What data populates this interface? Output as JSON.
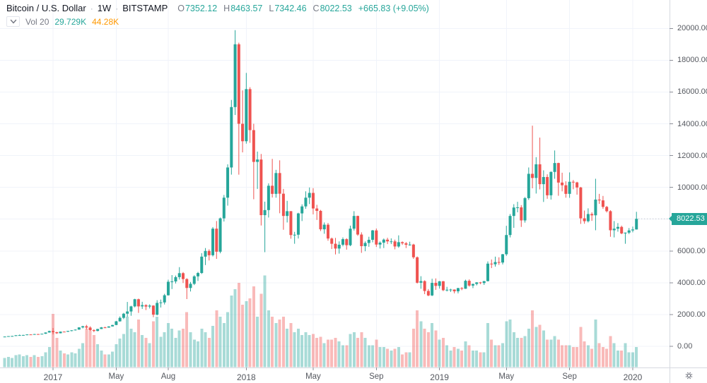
{
  "header": {
    "title": "Bitcoin / U.S. Dollar",
    "separator": "·",
    "interval": "1W",
    "exchange": "BITSTAMP",
    "ohlc": {
      "open_label": "O",
      "open": "7352.12",
      "high_label": "H",
      "high": "8463.57",
      "low_label": "L",
      "low": "7342.46",
      "close_label": "C",
      "close": "8022.53",
      "change": "+665.83 (+9.05%)"
    }
  },
  "volume_indicator": {
    "label": "Vol 20",
    "value": "29.729K",
    "ma": "44.28K"
  },
  "price_scale": {
    "ticks": [
      {
        "v": 20000,
        "label": "20000.00"
      },
      {
        "v": 18000,
        "label": "18000.00"
      },
      {
        "v": 16000,
        "label": "16000.00"
      },
      {
        "v": 14000,
        "label": "14000.00"
      },
      {
        "v": 12000,
        "label": "12000.00"
      },
      {
        "v": 10000,
        "label": "10000.00"
      },
      {
        "v": 8000,
        "label": "8000.00"
      },
      {
        "v": 6000,
        "label": "6000.00"
      },
      {
        "v": 4000,
        "label": "4000.00"
      },
      {
        "v": 2000,
        "label": "2000.00"
      },
      {
        "v": 0,
        "label": "0.00"
      }
    ],
    "last_price": {
      "value": 8022.53,
      "label": "8022.53"
    }
  },
  "time_scale": {
    "labels": [
      {
        "label": "2017",
        "week": 13
      },
      {
        "label": "May",
        "week": 30
      },
      {
        "label": "Aug",
        "week": 44
      },
      {
        "label": "2018",
        "week": 65
      },
      {
        "label": "May",
        "week": 83
      },
      {
        "label": "Sep",
        "week": 100
      },
      {
        "label": "2019",
        "week": 117
      },
      {
        "label": "May",
        "week": 135
      },
      {
        "label": "Sep",
        "week": 152
      },
      {
        "label": "2020",
        "week": 169
      }
    ]
  },
  "colors": {
    "up": "#26a69a",
    "down": "#ef5350",
    "vol_up": "rgba(38,166,154,0.40)",
    "vol_down": "rgba(239,83,80,0.40)",
    "grid": "#f0f3fa",
    "axis_line": "#d6d9e0",
    "axis_text": "#55585f",
    "text_primary": "#131722",
    "text_muted": "#787b86",
    "ma_orange": "#ff9800",
    "tag_bg": "#26a69a",
    "tag_text": "#ffffff",
    "background": "#ffffff",
    "price_line_dots": "#9aa0a6",
    "icon_gray": "#6a6d78"
  },
  "chart_data": {
    "type": "candlestick",
    "title": "Bitcoin / U.S. Dollar 1W BITSTAMP",
    "x_unit": "week",
    "legend_position": "top-left",
    "grid": true,
    "y_axis": {
      "min": 0,
      "max": 20000,
      "tick_step": 2000
    },
    "volume_pane": {
      "overlay": true,
      "max_bar_height_fraction": 0.25
    },
    "columns": [
      "open",
      "high",
      "low",
      "close",
      "relative_volume"
    ],
    "candles": [
      [
        608,
        618,
        596,
        613,
        0.1
      ],
      [
        613,
        645,
        605,
        640,
        0.11
      ],
      [
        640,
        660,
        630,
        650,
        0.1
      ],
      [
        650,
        700,
        645,
        698,
        0.13
      ],
      [
        698,
        740,
        680,
        705,
        0.14
      ],
      [
        705,
        722,
        670,
        715,
        0.12
      ],
      [
        715,
        755,
        700,
        748,
        0.13
      ],
      [
        748,
        756,
        727,
        735,
        0.11
      ],
      [
        735,
        780,
        725,
        770,
        0.13
      ],
      [
        770,
        781,
        750,
        768,
        0.11
      ],
      [
        768,
        795,
        760,
        790,
        0.12
      ],
      [
        790,
        875,
        785,
        870,
        0.16
      ],
      [
        870,
        985,
        860,
        962,
        0.22
      ],
      [
        962,
        1150,
        750,
        890,
        0.58
      ],
      [
        890,
        912,
        780,
        822,
        0.32
      ],
      [
        822,
        930,
        815,
        925,
        0.18
      ],
      [
        925,
        932,
        888,
        920,
        0.15
      ],
      [
        920,
        975,
        905,
        970,
        0.14
      ],
      [
        970,
        1015,
        945,
        1007,
        0.16
      ],
      [
        1007,
        1062,
        995,
        1052,
        0.15
      ],
      [
        1052,
        1200,
        1042,
        1190,
        0.2
      ],
      [
        1190,
        1292,
        1130,
        1262,
        0.26
      ],
      [
        1262,
        1352,
        1060,
        1180,
        0.42
      ],
      [
        1180,
        1260,
        972,
        1022,
        0.4
      ],
      [
        1022,
        1072,
        892,
        968,
        0.35
      ],
      [
        968,
        1100,
        942,
        1090,
        0.25
      ],
      [
        1090,
        1212,
        1085,
        1192,
        0.18
      ],
      [
        1192,
        1232,
        1140,
        1177,
        0.14
      ],
      [
        1177,
        1262,
        1172,
        1252,
        0.14
      ],
      [
        1252,
        1352,
        1247,
        1342,
        0.17
      ],
      [
        1342,
        1602,
        1332,
        1572,
        0.25
      ],
      [
        1572,
        1882,
        1552,
        1792,
        0.31
      ],
      [
        1792,
        2102,
        1712,
        2052,
        0.36
      ],
      [
        2052,
        2792,
        1852,
        2192,
        0.55
      ],
      [
        2192,
        2552,
        1922,
        2512,
        0.42
      ],
      [
        2512,
        2992,
        2452,
        2962,
        0.38
      ],
      [
        2962,
        3002,
        2102,
        2512,
        0.52
      ],
      [
        2512,
        2802,
        2352,
        2592,
        0.35
      ],
      [
        2592,
        2642,
        2282,
        2502,
        0.32
      ],
      [
        2502,
        2642,
        2382,
        2562,
        0.26
      ],
      [
        2562,
        2582,
        1832,
        1992,
        0.5
      ],
      [
        1992,
        2902,
        1942,
        2732,
        0.55
      ],
      [
        2732,
        2942,
        2442,
        2762,
        0.33
      ],
      [
        2762,
        3302,
        2632,
        3212,
        0.38
      ],
      [
        3212,
        4192,
        3192,
        4062,
        0.48
      ],
      [
        4062,
        4482,
        3602,
        4082,
        0.42
      ],
      [
        4082,
        4452,
        3952,
        4352,
        0.32
      ],
      [
        4352,
        4982,
        4202,
        4602,
        0.4
      ],
      [
        4602,
        4672,
        3982,
        4232,
        0.42
      ],
      [
        4232,
        4282,
        2972,
        3672,
        0.6
      ],
      [
        3672,
        4052,
        3452,
        3932,
        0.38
      ],
      [
        3932,
        4472,
        3852,
        4402,
        0.3
      ],
      [
        4402,
        4682,
        4112,
        4612,
        0.28
      ],
      [
        4612,
        5862,
        4552,
        5642,
        0.42
      ],
      [
        5642,
        6182,
        5112,
        6002,
        0.38
      ],
      [
        6002,
        6102,
        5402,
        5732,
        0.32
      ],
      [
        5732,
        7502,
        5652,
        7402,
        0.45
      ],
      [
        7402,
        7882,
        5502,
        5952,
        0.62
      ],
      [
        5952,
        8102,
        5852,
        8052,
        0.55
      ],
      [
        8052,
        9522,
        7852,
        9352,
        0.48
      ],
      [
        9352,
        11452,
        8852,
        11252,
        0.6
      ],
      [
        11252,
        15502,
        10802,
        15052,
        0.78
      ],
      [
        15052,
        19891,
        14552,
        19002,
        0.85
      ],
      [
        19002,
        19102,
        10802,
        14002,
        0.92
      ],
      [
        14002,
        16102,
        12202,
        12902,
        0.68
      ],
      [
        12902,
        17202,
        12752,
        16182,
        0.72
      ],
      [
        16182,
        16302,
        12802,
        13602,
        0.75
      ],
      [
        13602,
        14002,
        9252,
        11602,
        0.88
      ],
      [
        11602,
        12252,
        9902,
        11752,
        0.55
      ],
      [
        11752,
        12102,
        7602,
        8252,
        0.8
      ],
      [
        8252,
        9102,
        5922,
        8572,
        1.0
      ],
      [
        8572,
        10252,
        8102,
        10102,
        0.62
      ],
      [
        10102,
        11792,
        9362,
        9592,
        0.55
      ],
      [
        9592,
        11102,
        9352,
        10902,
        0.48
      ],
      [
        10902,
        11702,
        8372,
        9602,
        0.52
      ],
      [
        9602,
        9902,
        7332,
        8202,
        0.55
      ],
      [
        8202,
        9152,
        7792,
        8502,
        0.42
      ],
      [
        8502,
        8512,
        6772,
        7002,
        0.48
      ],
      [
        7002,
        7202,
        6452,
        7022,
        0.38
      ],
      [
        7022,
        8402,
        6782,
        8362,
        0.42
      ],
      [
        8362,
        8932,
        7882,
        8802,
        0.35
      ],
      [
        8802,
        9752,
        8652,
        9352,
        0.38
      ],
      [
        9352,
        9992,
        8952,
        9652,
        0.35
      ],
      [
        9652,
        9952,
        8302,
        8672,
        0.36
      ],
      [
        8672,
        8902,
        7952,
        8522,
        0.32
      ],
      [
        8522,
        8582,
        7252,
        7362,
        0.33
      ],
      [
        7362,
        7792,
        7082,
        7652,
        0.26
      ],
      [
        7652,
        7762,
        6642,
        6782,
        0.3
      ],
      [
        6782,
        6842,
        6122,
        6452,
        0.3
      ],
      [
        6452,
        6822,
        5782,
        6152,
        0.32
      ],
      [
        6152,
        6602,
        5832,
        6392,
        0.28
      ],
      [
        6392,
        6852,
        6292,
        6742,
        0.24
      ],
      [
        6742,
        6802,
        6082,
        6362,
        0.24
      ],
      [
        6362,
        7592,
        6302,
        7402,
        0.36
      ],
      [
        7402,
        8502,
        7282,
        8202,
        0.38
      ],
      [
        8202,
        8222,
        6952,
        7032,
        0.32
      ],
      [
        7032,
        7172,
        5882,
        6302,
        0.38
      ],
      [
        6302,
        6602,
        5982,
        6502,
        0.32
      ],
      [
        6502,
        6892,
        6262,
        6702,
        0.24
      ],
      [
        6702,
        7322,
        6542,
        7292,
        0.24
      ],
      [
        7292,
        7412,
        6252,
        6402,
        0.3
      ],
      [
        6402,
        6602,
        6152,
        6522,
        0.22
      ],
      [
        6522,
        6782,
        6182,
        6712,
        0.22
      ],
      [
        6712,
        6832,
        6432,
        6602,
        0.2
      ],
      [
        6602,
        6792,
        6432,
        6602,
        0.18
      ],
      [
        6602,
        6712,
        6102,
        6282,
        0.2
      ],
      [
        6282,
        6982,
        6202,
        6552,
        0.22
      ],
      [
        6552,
        6602,
        6382,
        6482,
        0.14
      ],
      [
        6482,
        6562,
        6182,
        6392,
        0.16
      ],
      [
        6392,
        6582,
        6332,
        6402,
        0.16
      ],
      [
        6402,
        6452,
        5502,
        5602,
        0.42
      ],
      [
        5602,
        5652,
        3952,
        4002,
        0.62
      ],
      [
        4002,
        4412,
        3622,
        4102,
        0.5
      ],
      [
        4102,
        4152,
        3282,
        3482,
        0.42
      ],
      [
        3482,
        3602,
        3152,
        3202,
        0.38
      ],
      [
        3202,
        4252,
        3162,
        3992,
        0.48
      ],
      [
        3992,
        4272,
        3552,
        3802,
        0.4
      ],
      [
        3802,
        4112,
        3632,
        4092,
        0.3
      ],
      [
        4092,
        4112,
        3472,
        3532,
        0.32
      ],
      [
        3532,
        3742,
        3452,
        3562,
        0.24
      ],
      [
        3562,
        3622,
        3422,
        3572,
        0.18
      ],
      [
        3572,
        3582,
        3332,
        3462,
        0.22
      ],
      [
        3462,
        3682,
        3332,
        3662,
        0.2
      ],
      [
        3662,
        3722,
        3532,
        3622,
        0.18
      ],
      [
        3622,
        4192,
        3612,
        4122,
        0.28
      ],
      [
        4122,
        4212,
        3752,
        3822,
        0.24
      ],
      [
        3822,
        3942,
        3662,
        3922,
        0.18
      ],
      [
        3922,
        4042,
        3832,
        4022,
        0.18
      ],
      [
        4022,
        4052,
        3912,
        3982,
        0.16
      ],
      [
        3982,
        4112,
        3862,
        4102,
        0.16
      ],
      [
        4102,
        5342,
        4082,
        5202,
        0.48
      ],
      [
        5202,
        5462,
        4922,
        5162,
        0.3
      ],
      [
        5162,
        5642,
        5012,
        5302,
        0.24
      ],
      [
        5302,
        5602,
        5122,
        5272,
        0.24
      ],
      [
        5272,
        5812,
        5152,
        5792,
        0.26
      ],
      [
        5792,
        7582,
        5692,
        7002,
        0.5
      ],
      [
        7002,
        8322,
        6852,
        8202,
        0.52
      ],
      [
        8202,
        8942,
        7452,
        8732,
        0.38
      ],
      [
        8732,
        9092,
        8432,
        8742,
        0.32
      ],
      [
        8742,
        8882,
        7512,
        7922,
        0.32
      ],
      [
        7922,
        9392,
        7782,
        9322,
        0.34
      ],
      [
        9322,
        11252,
        9212,
        10852,
        0.42
      ],
      [
        10852,
        13882,
        9942,
        10592,
        0.62
      ],
      [
        10592,
        11902,
        9612,
        11452,
        0.44
      ],
      [
        11452,
        13132,
        9872,
        10202,
        0.46
      ],
      [
        10202,
        11072,
        9082,
        10652,
        0.4
      ],
      [
        10652,
        10822,
        9282,
        9502,
        0.3
      ],
      [
        9502,
        11002,
        9232,
        10972,
        0.3
      ],
      [
        10972,
        12322,
        10542,
        11532,
        0.34
      ],
      [
        11532,
        11552,
        9472,
        10302,
        0.3
      ],
      [
        10302,
        10922,
        9752,
        10132,
        0.24
      ],
      [
        10132,
        10382,
        9352,
        9592,
        0.24
      ],
      [
        9592,
        10942,
        9342,
        10352,
        0.24
      ],
      [
        10352,
        10462,
        9882,
        10312,
        0.22
      ],
      [
        10312,
        10352,
        9542,
        9992,
        0.22
      ],
      [
        9992,
        10032,
        7702,
        8052,
        0.44
      ],
      [
        8052,
        8542,
        7712,
        7872,
        0.28
      ],
      [
        7872,
        8682,
        7792,
        8322,
        0.24
      ],
      [
        8322,
        8432,
        7892,
        8242,
        0.2
      ],
      [
        8242,
        10542,
        7302,
        9232,
        0.52
      ],
      [
        9232,
        9592,
        8962,
        9182,
        0.26
      ],
      [
        9182,
        9462,
        8652,
        8772,
        0.22
      ],
      [
        8772,
        8832,
        8422,
        8502,
        0.2
      ],
      [
        8502,
        8562,
        6892,
        7302,
        0.34
      ],
      [
        7302,
        7882,
        6852,
        7402,
        0.26
      ],
      [
        7402,
        7752,
        7212,
        7512,
        0.18
      ],
      [
        7512,
        7592,
        7052,
        7102,
        0.18
      ],
      [
        7102,
        7162,
        6452,
        7152,
        0.26
      ],
      [
        7152,
        7442,
        7062,
        7292,
        0.16
      ],
      [
        7292,
        7532,
        7172,
        7352,
        0.16
      ],
      [
        7352.12,
        8463.57,
        7342.46,
        8022.53,
        0.22
      ]
    ]
  }
}
